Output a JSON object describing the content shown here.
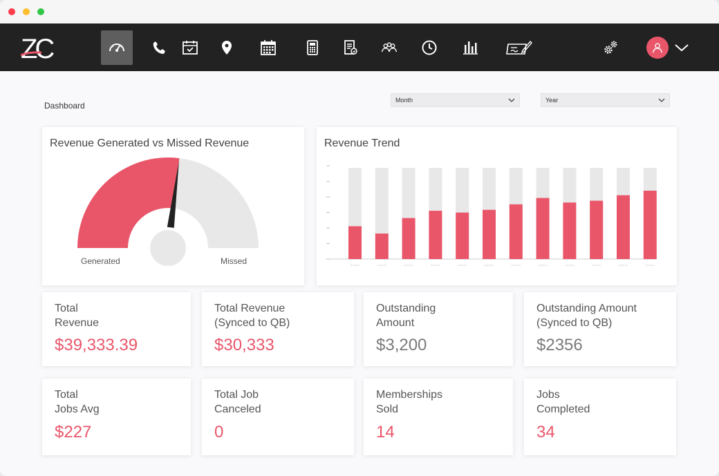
{
  "app": {
    "logo_text": "ZC",
    "nav_icons": [
      "speedometer-icon",
      "phone-icon",
      "calendar-check-icon",
      "location-pin-icon",
      "calendar-grid-icon",
      "calculator-icon",
      "document-icon",
      "team-icon",
      "clock-icon",
      "bar-chart-icon",
      "check-pen-icon",
      "settings-gears-icon"
    ],
    "accent_color": "#e9566a",
    "navbar_color": "#222222"
  },
  "dashboard": {
    "title": "Dashboard",
    "filters": {
      "month": "Month",
      "year": "Year"
    }
  },
  "gauge": {
    "title": "Revenue Generated vs Missed Revenue",
    "generated_label": "Generated",
    "missed_label": "Missed",
    "generated_fraction": 0.54,
    "colors": {
      "generated": "#e9566a",
      "missed": "#e8e8e8"
    }
  },
  "trend": {
    "title": "Revenue Trend",
    "max": 100,
    "values": [
      36,
      28,
      45,
      53,
      51,
      54,
      60,
      67,
      62,
      64,
      70,
      75
    ]
  },
  "stats": [
    {
      "label": "Total\nRevenue",
      "value": "$39,333.39",
      "tone": "pink"
    },
    {
      "label": "Total Revenue\n(Synced to QB)",
      "value": "$30,333",
      "tone": "pink"
    },
    {
      "label": "Outstanding\nAmount",
      "value": "$3,200",
      "tone": "grey"
    },
    {
      "label": "Outstanding Amount\n(Synced to QB)",
      "value": "$2356",
      "tone": "grey"
    },
    {
      "label": "Total\nJobs Avg",
      "value": "$227",
      "tone": "pink"
    },
    {
      "label": "Total Job\nCanceled",
      "value": "0",
      "tone": "pink"
    },
    {
      "label": "Memberships\nSold",
      "value": "14",
      "tone": "pink"
    },
    {
      "label": "Jobs\nCompleted",
      "value": "34",
      "tone": "pink"
    }
  ]
}
